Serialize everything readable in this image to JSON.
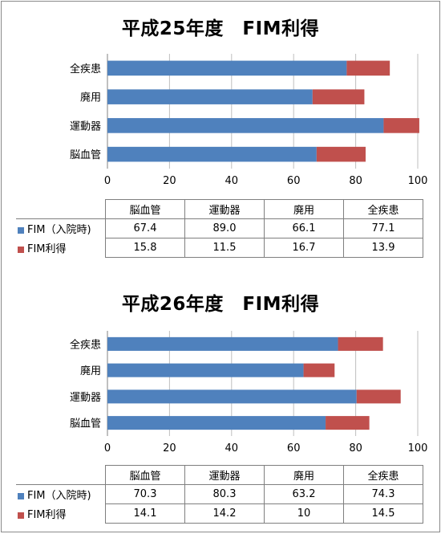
{
  "colors": {
    "fim_admission": "#4f81bd",
    "fim_gain": "#c0504d"
  },
  "chart_data": [
    {
      "type": "bar",
      "orientation": "horizontal",
      "stacked": true,
      "title": "平成25年度　FIM利得",
      "categories": [
        "脳血管",
        "運動器",
        "廃用",
        "全疾患"
      ],
      "series": [
        {
          "name": "FIM（入院時)",
          "values": [
            67.4,
            89.0,
            66.1,
            77.1
          ]
        },
        {
          "name": "FIM利得",
          "values": [
            15.8,
            11.5,
            16.7,
            13.9
          ]
        }
      ],
      "xlim": [
        0,
        100
      ],
      "xticks": [
        "0",
        "20",
        "40",
        "60",
        "80",
        "100"
      ],
      "grid": true,
      "table": {
        "columns": [
          "脳血管",
          "運動器",
          "廃用",
          "全疾患"
        ],
        "rows": [
          {
            "label": "FIM（入院時)",
            "cells": [
              "67.4",
              "89.0",
              "66.1",
              "77.1"
            ]
          },
          {
            "label": "FIM利得",
            "cells": [
              "15.8",
              "11.5",
              "16.7",
              "13.9"
            ]
          }
        ]
      }
    },
    {
      "type": "bar",
      "orientation": "horizontal",
      "stacked": true,
      "title": "平成26年度　FIM利得",
      "categories": [
        "脳血管",
        "運動器",
        "廃用",
        "全疾患"
      ],
      "series": [
        {
          "name": "FIM（入院時)",
          "values": [
            70.3,
            80.3,
            63.2,
            74.3
          ]
        },
        {
          "name": "FIM利得",
          "values": [
            14.1,
            14.2,
            10,
            14.5
          ]
        }
      ],
      "xlim": [
        0,
        100
      ],
      "xticks": [
        "0",
        "20",
        "40",
        "60",
        "80",
        "100"
      ],
      "grid": true,
      "table": {
        "columns": [
          "脳血管",
          "運動器",
          "廃用",
          "全疾患"
        ],
        "rows": [
          {
            "label": "FIM（入院時)",
            "cells": [
              "70.3",
              "80.3",
              "63.2",
              "74.3"
            ]
          },
          {
            "label": "FIM利得",
            "cells": [
              "14.1",
              "14.2",
              "10",
              "14.5"
            ]
          }
        ]
      }
    }
  ]
}
